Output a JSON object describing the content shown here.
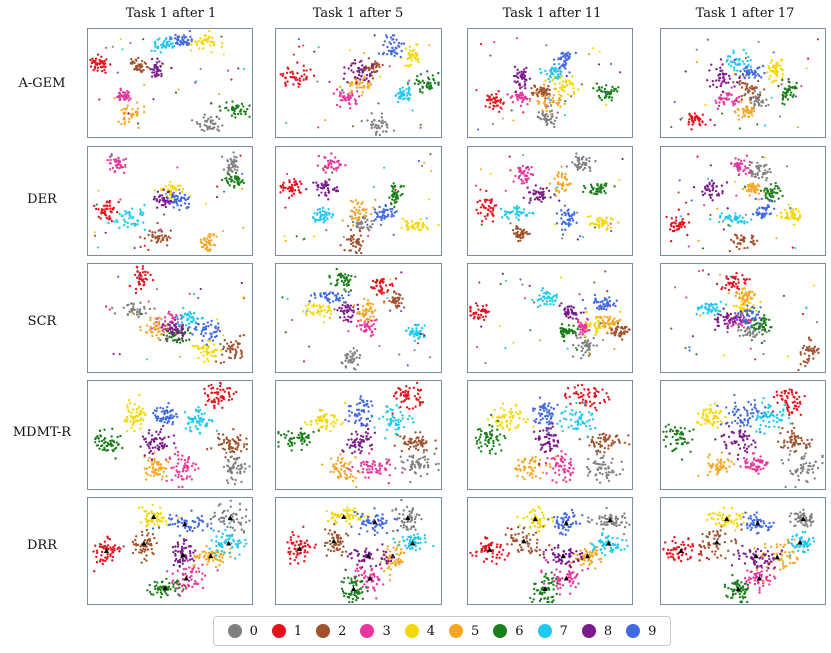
{
  "chart_data": {
    "type": "scatter",
    "title": "",
    "columns": [
      "Task 1 after 1",
      "Task 1 after 5",
      "Task 1 after 11",
      "Task 1 after 17"
    ],
    "rows": [
      "A-GEM",
      "DER",
      "SCR",
      "MDMT-R",
      "DRR"
    ],
    "legend": {
      "placement": "bottom-center",
      "entries": [
        {
          "label": "0",
          "color": "#808080"
        },
        {
          "label": "1",
          "color": "#e8101a"
        },
        {
          "label": "2",
          "color": "#a0522d"
        },
        {
          "label": "3",
          "color": "#e8359b"
        },
        {
          "label": "4",
          "color": "#f5d800"
        },
        {
          "label": "5",
          "color": "#f5a623"
        },
        {
          "label": "6",
          "color": "#1a7f1a"
        },
        {
          "label": "7",
          "color": "#1ec8f0"
        },
        {
          "label": "8",
          "color": "#7b1a8c"
        },
        {
          "label": "9",
          "color": "#4169e1"
        }
      ]
    },
    "panels": {
      "A-GEM": [
        [
          [
            0,
            0.74,
            0.89
          ],
          [
            1,
            0.06,
            0.32
          ],
          [
            2,
            0.3,
            0.34
          ],
          [
            3,
            0.22,
            0.62
          ],
          [
            4,
            0.72,
            0.12
          ],
          [
            5,
            0.26,
            0.78
          ],
          [
            6,
            0.9,
            0.75
          ],
          [
            7,
            0.46,
            0.14
          ],
          [
            8,
            0.42,
            0.38
          ],
          [
            9,
            0.56,
            0.1
          ]
        ],
        [
          [
            0,
            0.62,
            0.9
          ],
          [
            1,
            0.12,
            0.45
          ],
          [
            2,
            0.58,
            0.35
          ],
          [
            3,
            0.43,
            0.63
          ],
          [
            4,
            0.82,
            0.25
          ],
          [
            5,
            0.52,
            0.52
          ],
          [
            6,
            0.92,
            0.5
          ],
          [
            7,
            0.78,
            0.6
          ],
          [
            8,
            0.5,
            0.38
          ],
          [
            9,
            0.71,
            0.16
          ]
        ],
        [
          [
            0,
            0.48,
            0.82
          ],
          [
            1,
            0.16,
            0.67
          ],
          [
            2,
            0.45,
            0.58
          ],
          [
            3,
            0.32,
            0.63
          ],
          [
            4,
            0.58,
            0.52
          ],
          [
            5,
            0.5,
            0.68
          ],
          [
            6,
            0.85,
            0.59
          ],
          [
            7,
            0.52,
            0.4
          ],
          [
            8,
            0.32,
            0.45
          ],
          [
            9,
            0.59,
            0.28
          ]
        ],
        [
          [
            0,
            0.58,
            0.66
          ],
          [
            1,
            0.2,
            0.83
          ],
          [
            2,
            0.53,
            0.55
          ],
          [
            3,
            0.41,
            0.65
          ],
          [
            4,
            0.7,
            0.38
          ],
          [
            5,
            0.52,
            0.75
          ],
          [
            6,
            0.77,
            0.56
          ],
          [
            7,
            0.46,
            0.3
          ],
          [
            8,
            0.38,
            0.46
          ],
          [
            9,
            0.55,
            0.4
          ]
        ]
      ],
      "DER": [
        [
          [
            0,
            0.88,
            0.17
          ],
          [
            1,
            0.12,
            0.6
          ],
          [
            2,
            0.42,
            0.84
          ],
          [
            3,
            0.18,
            0.16
          ],
          [
            4,
            0.52,
            0.4
          ],
          [
            5,
            0.73,
            0.88
          ],
          [
            6,
            0.9,
            0.3
          ],
          [
            7,
            0.26,
            0.66
          ],
          [
            8,
            0.46,
            0.49
          ],
          [
            9,
            0.56,
            0.49
          ]
        ],
        [
          [
            0,
            0.52,
            0.71
          ],
          [
            1,
            0.09,
            0.37
          ],
          [
            2,
            0.48,
            0.87
          ],
          [
            3,
            0.34,
            0.16
          ],
          [
            4,
            0.84,
            0.72
          ],
          [
            5,
            0.5,
            0.6
          ],
          [
            6,
            0.73,
            0.44
          ],
          [
            7,
            0.28,
            0.64
          ],
          [
            8,
            0.3,
            0.38
          ],
          [
            9,
            0.66,
            0.62
          ]
        ],
        [
          [
            0,
            0.7,
            0.14
          ],
          [
            1,
            0.12,
            0.56
          ],
          [
            2,
            0.32,
            0.8
          ],
          [
            3,
            0.34,
            0.26
          ],
          [
            4,
            0.8,
            0.7
          ],
          [
            5,
            0.57,
            0.33
          ],
          [
            6,
            0.8,
            0.4
          ],
          [
            7,
            0.28,
            0.62
          ],
          [
            8,
            0.42,
            0.44
          ],
          [
            9,
            0.6,
            0.66
          ]
        ],
        [
          [
            0,
            0.6,
            0.22
          ],
          [
            1,
            0.12,
            0.72
          ],
          [
            2,
            0.5,
            0.86
          ],
          [
            3,
            0.48,
            0.18
          ],
          [
            4,
            0.8,
            0.63
          ],
          [
            5,
            0.56,
            0.38
          ],
          [
            6,
            0.67,
            0.42
          ],
          [
            7,
            0.44,
            0.66
          ],
          [
            8,
            0.32,
            0.4
          ],
          [
            9,
            0.62,
            0.6
          ]
        ]
      ],
      "SCR": [
        [
          [
            0,
            0.28,
            0.42
          ],
          [
            1,
            0.32,
            0.13
          ],
          [
            2,
            0.88,
            0.78
          ],
          [
            3,
            0.49,
            0.54
          ],
          [
            4,
            0.72,
            0.8
          ],
          [
            5,
            0.4,
            0.6
          ],
          [
            6,
            0.55,
            0.66
          ],
          [
            7,
            0.62,
            0.51
          ],
          [
            8,
            0.53,
            0.62
          ],
          [
            9,
            0.73,
            0.62
          ]
        ],
        [
          [
            0,
            0.46,
            0.88
          ],
          [
            1,
            0.64,
            0.2
          ],
          [
            2,
            0.73,
            0.34
          ],
          [
            3,
            0.55,
            0.57
          ],
          [
            4,
            0.26,
            0.42
          ],
          [
            5,
            0.55,
            0.43
          ],
          [
            6,
            0.4,
            0.14
          ],
          [
            7,
            0.85,
            0.62
          ],
          [
            8,
            0.42,
            0.43
          ],
          [
            9,
            0.32,
            0.3
          ]
        ],
        [
          [
            0,
            0.72,
            0.76
          ],
          [
            1,
            0.06,
            0.45
          ],
          [
            2,
            0.93,
            0.62
          ],
          [
            3,
            0.7,
            0.6
          ],
          [
            4,
            0.8,
            0.56
          ],
          [
            5,
            0.86,
            0.54
          ],
          [
            6,
            0.6,
            0.63
          ],
          [
            7,
            0.48,
            0.32
          ],
          [
            8,
            0.62,
            0.45
          ],
          [
            9,
            0.82,
            0.37
          ]
        ],
        [
          [
            0,
            0.56,
            0.62
          ],
          [
            1,
            0.44,
            0.17
          ],
          [
            2,
            0.9,
            0.82
          ],
          [
            3,
            0.48,
            0.52
          ],
          [
            4,
            0.5,
            0.4
          ],
          [
            5,
            0.52,
            0.3
          ],
          [
            6,
            0.6,
            0.56
          ],
          [
            7,
            0.3,
            0.4
          ],
          [
            8,
            0.4,
            0.52
          ],
          [
            9,
            0.54,
            0.48
          ]
        ]
      ],
      "MDMT-R": [
        [
          [
            0,
            0.9,
            0.81
          ],
          [
            1,
            0.8,
            0.14
          ],
          [
            2,
            0.86,
            0.59
          ],
          [
            3,
            0.58,
            0.8
          ],
          [
            4,
            0.29,
            0.33
          ],
          [
            5,
            0.4,
            0.8
          ],
          [
            6,
            0.13,
            0.58
          ],
          [
            7,
            0.66,
            0.38
          ],
          [
            8,
            0.41,
            0.55
          ],
          [
            9,
            0.47,
            0.32
          ]
        ],
        [
          [
            0,
            0.85,
            0.79
          ],
          [
            1,
            0.8,
            0.14
          ],
          [
            2,
            0.85,
            0.57
          ],
          [
            3,
            0.59,
            0.8
          ],
          [
            4,
            0.29,
            0.36
          ],
          [
            5,
            0.4,
            0.82
          ],
          [
            6,
            0.13,
            0.53
          ],
          [
            7,
            0.71,
            0.36
          ],
          [
            8,
            0.5,
            0.56
          ],
          [
            9,
            0.51,
            0.28
          ]
        ],
        [
          [
            0,
            0.83,
            0.79
          ],
          [
            1,
            0.73,
            0.14
          ],
          [
            2,
            0.84,
            0.57
          ],
          [
            3,
            0.57,
            0.81
          ],
          [
            4,
            0.25,
            0.35
          ],
          [
            5,
            0.39,
            0.79
          ],
          [
            6,
            0.13,
            0.53
          ],
          [
            7,
            0.68,
            0.36
          ],
          [
            8,
            0.48,
            0.55
          ],
          [
            9,
            0.47,
            0.3
          ]
        ],
        [
          [
            0,
            0.86,
            0.78
          ],
          [
            1,
            0.78,
            0.17
          ],
          [
            2,
            0.82,
            0.55
          ],
          [
            3,
            0.58,
            0.77
          ],
          [
            4,
            0.31,
            0.33
          ],
          [
            5,
            0.36,
            0.78
          ],
          [
            6,
            0.11,
            0.53
          ],
          [
            7,
            0.66,
            0.33
          ],
          [
            8,
            0.48,
            0.53
          ],
          [
            9,
            0.51,
            0.31
          ]
        ]
      ],
      "DRR": [
        [
          [
            0,
            0.87,
            0.19
          ],
          [
            1,
            0.11,
            0.5
          ],
          [
            2,
            0.34,
            0.43
          ],
          [
            3,
            0.6,
            0.76
          ],
          [
            4,
            0.4,
            0.18
          ],
          [
            5,
            0.75,
            0.55
          ],
          [
            6,
            0.47,
            0.85
          ],
          [
            7,
            0.86,
            0.43
          ],
          [
            8,
            0.58,
            0.54
          ],
          [
            9,
            0.59,
            0.25
          ]
        ],
        [
          [
            0,
            0.8,
            0.19
          ],
          [
            1,
            0.14,
            0.48
          ],
          [
            2,
            0.35,
            0.41
          ],
          [
            3,
            0.57,
            0.76
          ],
          [
            4,
            0.41,
            0.18
          ],
          [
            5,
            0.71,
            0.55
          ],
          [
            6,
            0.47,
            0.86
          ],
          [
            7,
            0.83,
            0.43
          ],
          [
            8,
            0.56,
            0.55
          ],
          [
            9,
            0.6,
            0.23
          ]
        ],
        [
          [
            0,
            0.87,
            0.21
          ],
          [
            1,
            0.13,
            0.49
          ],
          [
            2,
            0.34,
            0.41
          ],
          [
            3,
            0.6,
            0.76
          ],
          [
            4,
            0.41,
            0.2
          ],
          [
            5,
            0.73,
            0.55
          ],
          [
            6,
            0.47,
            0.86
          ],
          [
            7,
            0.86,
            0.43
          ],
          [
            8,
            0.58,
            0.55
          ],
          [
            9,
            0.6,
            0.24
          ]
        ],
        [
          [
            0,
            0.87,
            0.2
          ],
          [
            1,
            0.12,
            0.5
          ],
          [
            2,
            0.34,
            0.42
          ],
          [
            3,
            0.6,
            0.76
          ],
          [
            4,
            0.4,
            0.2
          ],
          [
            5,
            0.71,
            0.56
          ],
          [
            6,
            0.47,
            0.86
          ],
          [
            7,
            0.85,
            0.42
          ],
          [
            8,
            0.58,
            0.55
          ],
          [
            9,
            0.59,
            0.24
          ]
        ]
      ]
    }
  }
}
